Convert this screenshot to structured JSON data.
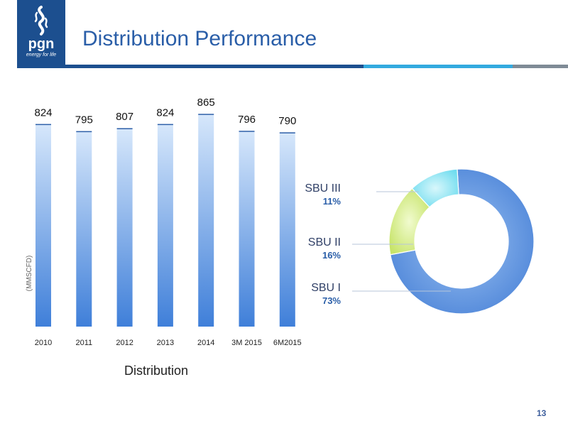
{
  "header": {
    "title": "Distribution Performance",
    "logo_text": "pgn",
    "logo_tagline": "energy for life"
  },
  "slide_number": "13",
  "chart_caption": "Distribution",
  "colors": {
    "brand_blue": "#1c4f8f",
    "title_blue": "#2a5ea8",
    "accent_cyan": "#33aadf",
    "rule_gray": "#7f8b96"
  },
  "chart_data": [
    {
      "type": "bar",
      "categories": [
        "2010",
        "2011",
        "2012",
        "2013",
        "2014",
        "3M 2015",
        "6M2015"
      ],
      "values": [
        824,
        795,
        807,
        824,
        865,
        796,
        790
      ],
      "ylabel": "(MMSCFD)",
      "xlabel": "",
      "ylim": [
        0,
        1100
      ],
      "grid": false
    },
    {
      "type": "pie",
      "labels": [
        "SBU I",
        "SBU II",
        "SBU III"
      ],
      "values": [
        73,
        16,
        11
      ],
      "value_labels": [
        "73%",
        "16%",
        "11%"
      ],
      "colors": [
        "#6a9ee6",
        "#d6f08c",
        "#8fe6f4"
      ]
    }
  ]
}
